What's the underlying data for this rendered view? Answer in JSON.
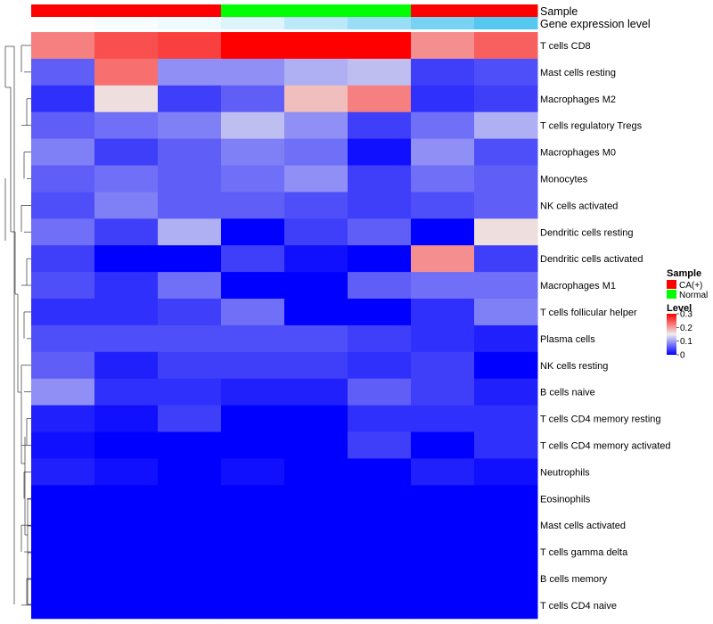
{
  "chart_data": {
    "type": "heatmap",
    "annotation_tracks": [
      {
        "name": "Sample",
        "values": [
          "CA(+)",
          "CA(+)",
          "CA(+)",
          "Normal",
          "Normal",
          "Normal",
          "CA(+)",
          "CA(+)"
        ]
      },
      {
        "name": "Gene expression level",
        "values": [
          0.0,
          0.05,
          0.1,
          0.2,
          0.4,
          0.6,
          0.8,
          1.0
        ]
      }
    ],
    "rows": [
      "T cells CD8",
      "Mast cells resting",
      "Macrophages M2",
      "T cells regulatory  Tregs",
      "Macrophages M0",
      "Monocytes",
      "NK cells activated",
      "Dendritic cells resting",
      "Dendritic cells activated",
      "Macrophages M1",
      "T cells follicular helper",
      "Plasma cells",
      "NK cells resting",
      "B cells naive",
      "T cells CD4 memory resting",
      "T cells CD4 memory activated",
      "Neutrophils",
      "Eosinophils",
      "Mast cells activated",
      "T cells gamma delta",
      "B cells memory",
      "T cells CD4 naive"
    ],
    "values": [
      [
        0.22,
        0.25,
        0.26,
        0.3,
        0.3,
        0.3,
        0.21,
        0.24
      ],
      [
        0.06,
        0.23,
        0.09,
        0.09,
        0.11,
        0.12,
        0.04,
        0.05
      ],
      [
        0.03,
        0.16,
        0.04,
        0.06,
        0.18,
        0.22,
        0.03,
        0.04
      ],
      [
        0.06,
        0.07,
        0.08,
        0.12,
        0.09,
        0.04,
        0.07,
        0.11
      ],
      [
        0.08,
        0.04,
        0.06,
        0.08,
        0.07,
        0.01,
        0.09,
        0.05
      ],
      [
        0.06,
        0.07,
        0.06,
        0.07,
        0.09,
        0.04,
        0.07,
        0.06
      ],
      [
        0.05,
        0.08,
        0.06,
        0.06,
        0.05,
        0.04,
        0.05,
        0.06
      ],
      [
        0.07,
        0.04,
        0.11,
        0.0,
        0.04,
        0.06,
        0.0,
        0.16
      ],
      [
        0.04,
        0.0,
        0.0,
        0.04,
        0.01,
        0.0,
        0.21,
        0.04
      ],
      [
        0.05,
        0.03,
        0.07,
        0.0,
        0.0,
        0.06,
        0.07,
        0.07
      ],
      [
        0.03,
        0.03,
        0.04,
        0.07,
        0.0,
        0.0,
        0.03,
        0.08
      ],
      [
        0.05,
        0.05,
        0.05,
        0.05,
        0.05,
        0.04,
        0.03,
        0.02
      ],
      [
        0.06,
        0.02,
        0.04,
        0.04,
        0.04,
        0.03,
        0.04,
        0.0
      ],
      [
        0.09,
        0.03,
        0.03,
        0.02,
        0.02,
        0.06,
        0.04,
        0.02
      ],
      [
        0.02,
        0.01,
        0.04,
        0.0,
        0.0,
        0.03,
        0.03,
        0.03
      ],
      [
        0.01,
        0.0,
        0.0,
        0.0,
        0.0,
        0.04,
        0.0,
        0.03
      ],
      [
        0.02,
        0.01,
        0.0,
        0.01,
        0.0,
        0.0,
        0.02,
        0.01
      ],
      [
        0.0,
        0.0,
        0.0,
        0.0,
        0.0,
        0.0,
        0.0,
        0.0
      ],
      [
        0.0,
        0.0,
        0.0,
        0.0,
        0.0,
        0.0,
        0.0,
        0.0
      ],
      [
        0.0,
        0.0,
        0.0,
        0.0,
        0.0,
        0.0,
        0.0,
        0.0
      ],
      [
        0.0,
        0.0,
        0.0,
        0.0,
        0.0,
        0.0,
        0.0,
        0.0
      ],
      [
        0.0,
        0.0,
        0.0,
        0.0,
        0.0,
        0.0,
        0.0,
        0.0
      ]
    ],
    "color_scale": {
      "min": 0,
      "mid": 0.15,
      "max": 0.3,
      "low": "#0000ff",
      "mid_color": "#eeeeee",
      "high": "#ff0000"
    },
    "legend": {
      "sample_title": "Sample",
      "sample_items": [
        {
          "label": "CA(+)",
          "color": "#ff0000"
        },
        {
          "label": "Normal",
          "color": "#00ff00"
        }
      ],
      "level_title": "Level",
      "level_ticks": [
        "0.3",
        "0.2",
        "0.1",
        "0"
      ],
      "level_tick_values": [
        0.3,
        0.2,
        0.1,
        0
      ],
      "position": "right"
    },
    "expression_track_low": "#ffffff",
    "expression_track_high": "#56c8f0"
  }
}
